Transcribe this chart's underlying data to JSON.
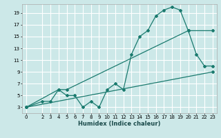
{
  "xlabel": "Humidex (Indice chaleur)",
  "bg_color": "#cce8e8",
  "grid_color": "#ffffff",
  "line_color": "#1a7a6e",
  "xlim": [
    -0.5,
    23.5
  ],
  "ylim": [
    2,
    20.5
  ],
  "xticks": [
    0,
    2,
    3,
    4,
    5,
    6,
    7,
    8,
    9,
    10,
    11,
    12,
    13,
    14,
    15,
    16,
    17,
    18,
    19,
    20,
    21,
    22,
    23
  ],
  "yticks": [
    3,
    5,
    7,
    9,
    11,
    13,
    15,
    17,
    19
  ],
  "line1_x": [
    0,
    2,
    3,
    4,
    5,
    6,
    7,
    8,
    9,
    10,
    11,
    12,
    13,
    14,
    15,
    16,
    17,
    18,
    19,
    20,
    21,
    22,
    23
  ],
  "line1_y": [
    3,
    4,
    4,
    6,
    5,
    5,
    3,
    4,
    3,
    6,
    7,
    6,
    12,
    15,
    16,
    18.5,
    19.5,
    20,
    19.5,
    16,
    12,
    10,
    10
  ],
  "line2_x": [
    0,
    4,
    5,
    20,
    23
  ],
  "line2_y": [
    3,
    6,
    6,
    16,
    16
  ],
  "line3_x": [
    0,
    23
  ],
  "line3_y": [
    3,
    9
  ]
}
